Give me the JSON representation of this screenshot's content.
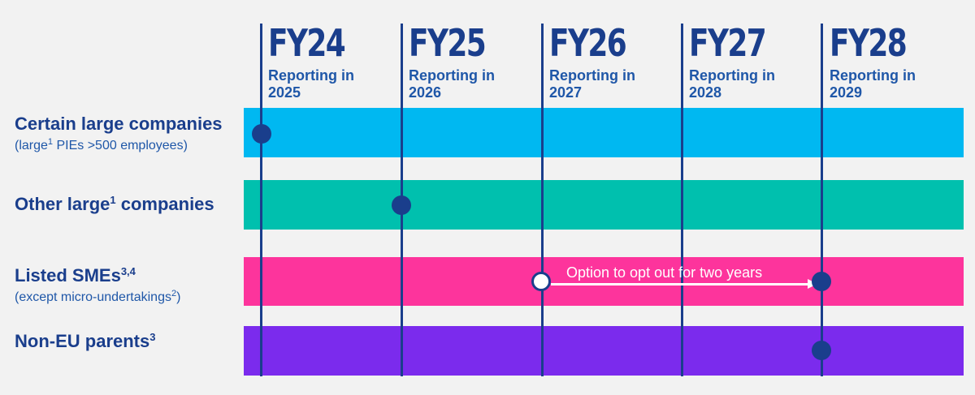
{
  "years": [
    {
      "fy": "FY24",
      "reporting": "Reporting in 2025"
    },
    {
      "fy": "FY25",
      "reporting": "Reporting in 2026"
    },
    {
      "fy": "FY26",
      "reporting": "Reporting in 2027"
    },
    {
      "fy": "FY27",
      "reporting": "Reporting in 2028"
    },
    {
      "fy": "FY28",
      "reporting": "Reporting in 2029"
    }
  ],
  "rows": [
    {
      "label": "Certain large companies",
      "sub_pre": "(large",
      "sub_sup": "1",
      "sub_post": " PIEs >500 employees)",
      "start": "FY24"
    },
    {
      "label_pre": "Other large",
      "label_sup": "1",
      "label_post": " companies",
      "start": "FY25"
    },
    {
      "label": "Listed SMEs",
      "label_sup": "3,4",
      "sub_pre": "(except micro-undertakings",
      "sub_sup": "2",
      "sub_post": ")",
      "start": "FY28",
      "opt_out_from": "FY26"
    },
    {
      "label": "Non-EU parents",
      "label_sup": "3",
      "start": "FY28"
    }
  ],
  "option_text": "Option to opt out for two years",
  "colors": {
    "background": "#f2f2f2",
    "navy": "#1a3e8c",
    "band_1": "#00b8f1",
    "band_2": "#00c0ae",
    "band_3": "#fd349c",
    "band_4": "#7b2bed"
  }
}
